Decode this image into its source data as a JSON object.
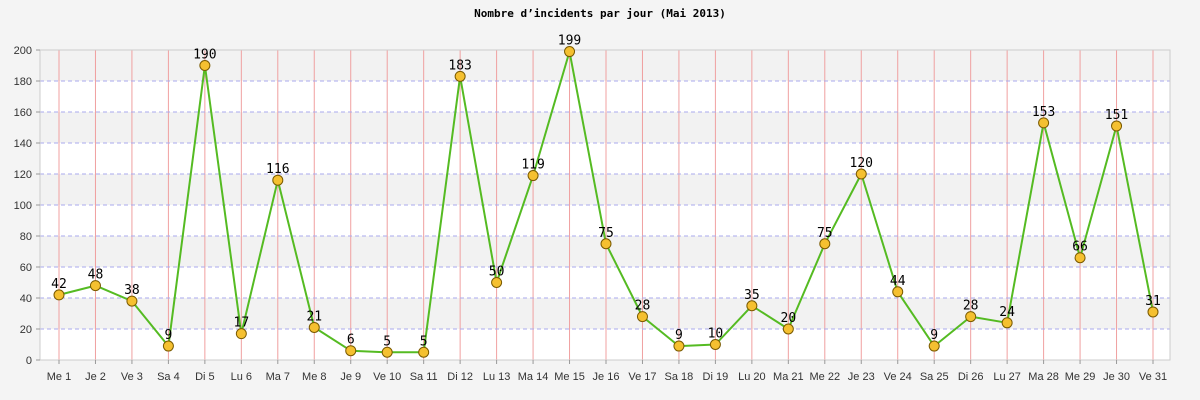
{
  "chart_data": {
    "type": "line",
    "title": "Nombre d’incidents par jour (Mai 2013)",
    "xlabel": "",
    "ylabel": "",
    "ylim": [
      0,
      200
    ],
    "yticks": [
      0,
      20,
      40,
      60,
      80,
      100,
      120,
      140,
      160,
      180,
      200
    ],
    "grid": true,
    "categories": [
      "Me 1",
      "Je 2",
      "Ve 3",
      "Sa 4",
      "Di 5",
      "Lu 6",
      "Ma 7",
      "Me 8",
      "Je 9",
      "Ve 10",
      "Sa 11",
      "Di 12",
      "Lu 13",
      "Ma 14",
      "Me 15",
      "Je 16",
      "Ve 17",
      "Sa 18",
      "Di 19",
      "Lu 20",
      "Ma 21",
      "Me 22",
      "Je 23",
      "Ve 24",
      "Sa 25",
      "Di 26",
      "Lu 27",
      "Ma 28",
      "Me 29",
      "Je 30",
      "Ve 31"
    ],
    "series": [
      {
        "values": [
          42,
          48,
          38,
          9,
          190,
          17,
          116,
          21,
          6,
          5,
          5,
          183,
          50,
          119,
          199,
          75,
          28,
          9,
          10,
          35,
          20,
          75,
          120,
          44,
          9,
          28,
          24,
          153,
          66,
          151,
          31
        ]
      }
    ],
    "colors": {
      "line": "#55bb22",
      "marker_fill": "#f5c030",
      "marker_stroke": "#7a5a00",
      "vgrid": "#f0a0a0",
      "hgrid": "#aaaaee",
      "band": "#f2f2f2",
      "plot_bg": "#ffffff"
    }
  }
}
